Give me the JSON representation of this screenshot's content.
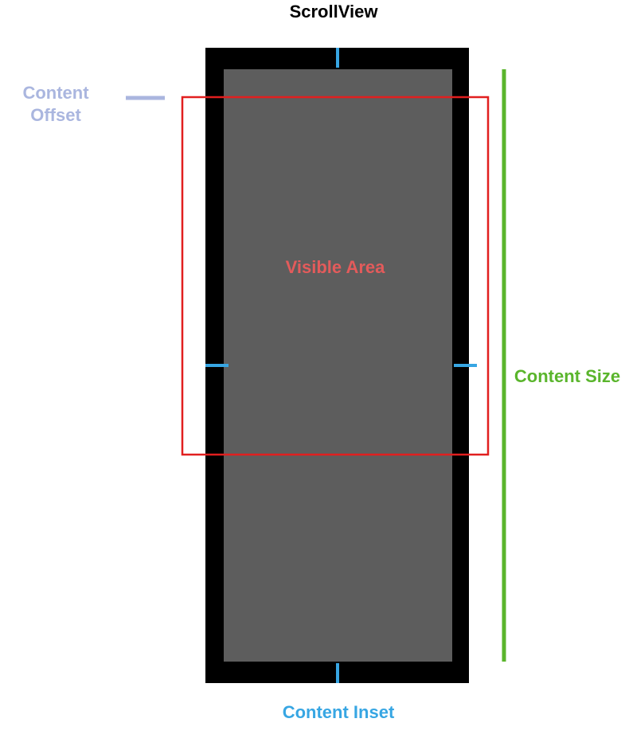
{
  "title": "ScrollView",
  "labels": {
    "content_offset": "Content Offset",
    "visible_area": "Visible Area",
    "content_size": "Content Size",
    "content_inset": "Content Inset"
  },
  "colors": {
    "frame": "#000000",
    "content": "#5d5d5d",
    "visible_area": "#e11f1f",
    "visible_area_text": "#e35b5b",
    "content_size": "#5ab52c",
    "content_inset": "#37a6e3",
    "content_offset": "#aab6df"
  }
}
